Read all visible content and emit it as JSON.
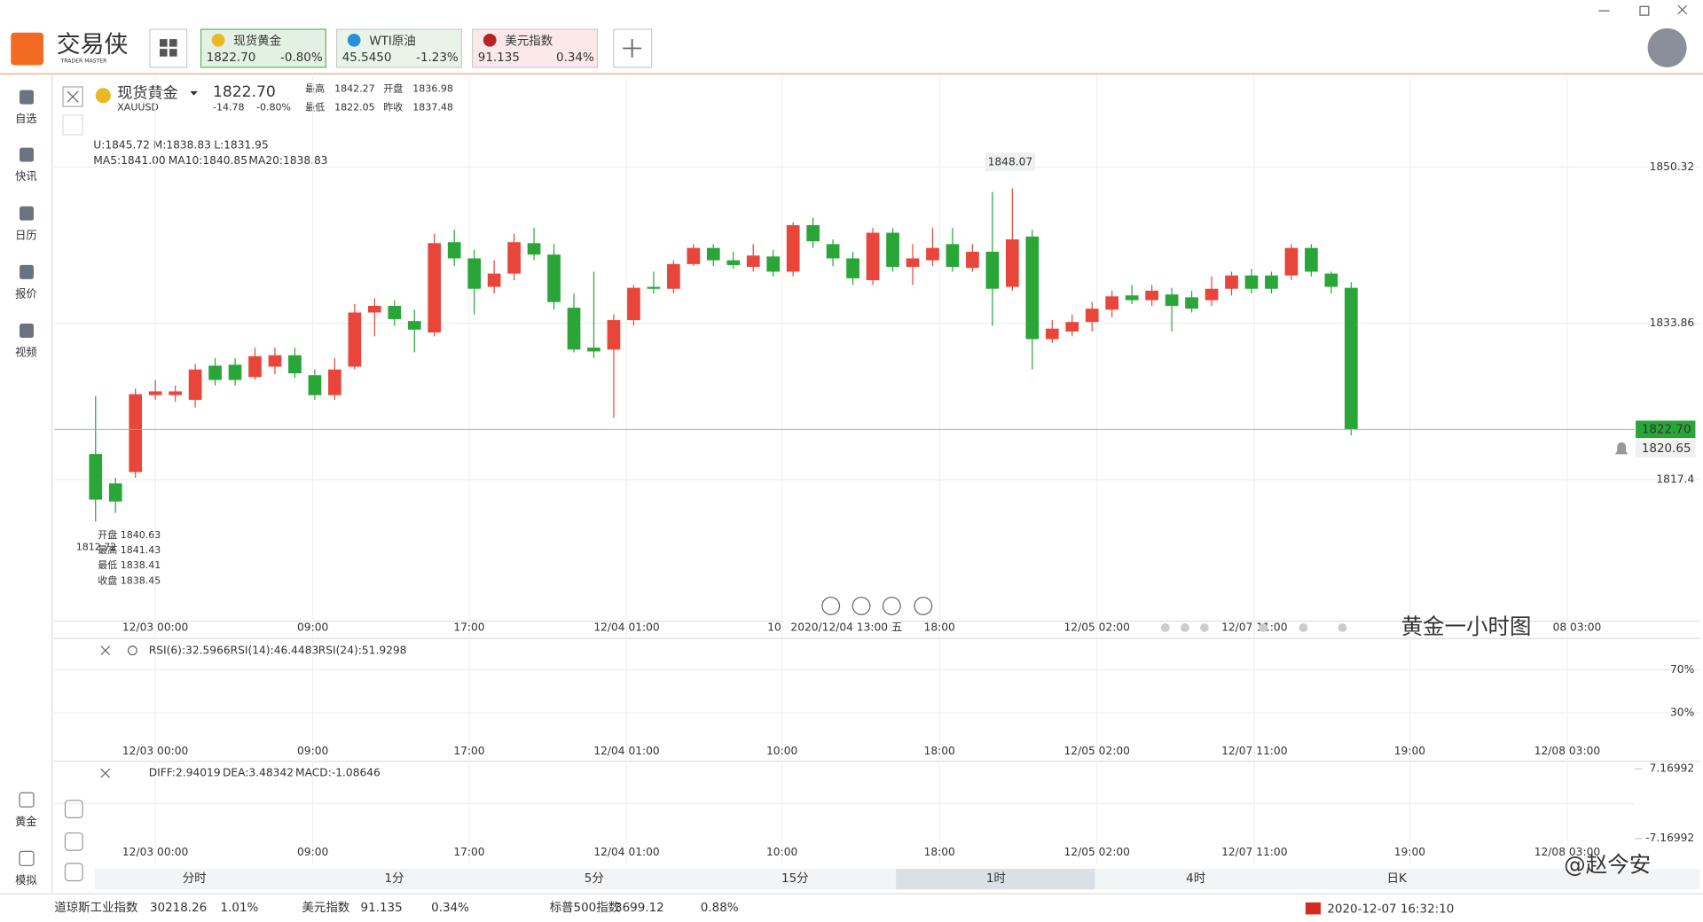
{
  "app": {
    "logo_name": "交易侠",
    "logo_sub": "TRADER MASTER"
  },
  "tabs": [
    {
      "name": "现货黄金",
      "price": "1822.70",
      "change": "-0.80%"
    },
    {
      "name": "WTI原油",
      "price": "45.5450",
      "change": "-1.23%"
    },
    {
      "name": "美元指数",
      "price": "91.135",
      "change": "0.34%"
    }
  ],
  "sidebar": [
    "自选",
    "快讯",
    "日历",
    "报价",
    "视频"
  ],
  "sidebar_bottom": [
    "黄金",
    "模拟"
  ],
  "instrument": {
    "name": "现货黄金",
    "code": "XAUUSD",
    "price": "1822.70",
    "change": "-14.78",
    "change_pct": "-0.80%",
    "stats": [
      {
        "label": "最高",
        "value": "1842.27"
      },
      {
        "label": "开盘",
        "value": "1836.98"
      },
      {
        "label": "最低",
        "value": "1822.05"
      },
      {
        "label": "昨收",
        "value": "1837.48"
      }
    ]
  },
  "boll": [
    "U:1845.72",
    "M:1838.83",
    "L:1831.95"
  ],
  "ma": [
    "MA5:1841.00",
    "MA10:1840.85",
    "MA20:1838.83"
  ],
  "hover": {
    "time": "2020/12/04 13:00 五",
    "low_marker": "1812.72",
    "lines": [
      "开盘 1840.63",
      "最高 1841.43",
      "最低 1838.41",
      "收盘 1838.45"
    ]
  },
  "annotation": "黄金一小时图",
  "chart_data": {
    "type": "candlestick",
    "ylim": [
      1802.5,
      1859.9
    ],
    "yticks": [
      1850.32,
      1833.86,
      1817.4
    ],
    "alert": 1820.65,
    "x_labels": [
      "12/03 00:00",
      "09:00",
      "17:00",
      "12/04 01:00",
      "10",
      "18:00",
      "12/05 02:00",
      "12/07 11:00",
      "08 03:00"
    ],
    "up_color": "#e8463b",
    "down_color": "#2aa639",
    "candles": [
      [
        1820.1,
        1826.2,
        1813.0,
        1815.3
      ],
      [
        1817.0,
        1817.6,
        1813.9,
        1815.1
      ],
      [
        1818.2,
        1827.0,
        1817.6,
        1826.4
      ],
      [
        1826.3,
        1827.9,
        1825.8,
        1826.7
      ],
      [
        1826.3,
        1827.3,
        1825.6,
        1826.7
      ],
      [
        1825.8,
        1829.6,
        1825.0,
        1829.0
      ],
      [
        1829.4,
        1830.2,
        1827.3,
        1827.9
      ],
      [
        1829.5,
        1830.2,
        1827.3,
        1827.9
      ],
      [
        1828.2,
        1831.3,
        1827.9,
        1830.4
      ],
      [
        1829.3,
        1831.3,
        1828.5,
        1830.5
      ],
      [
        1830.5,
        1831.3,
        1828.1,
        1828.6
      ],
      [
        1828.4,
        1829.0,
        1825.8,
        1826.3
      ],
      [
        1826.3,
        1830.2,
        1825.8,
        1829.0
      ],
      [
        1829.3,
        1835.9,
        1829.0,
        1835.0
      ],
      [
        1835.0,
        1836.5,
        1832.5,
        1835.7
      ],
      [
        1835.7,
        1836.3,
        1833.6,
        1834.3
      ],
      [
        1834.1,
        1835.3,
        1830.8,
        1833.2
      ],
      [
        1832.9,
        1843.3,
        1832.5,
        1842.3
      ],
      [
        1842.4,
        1843.7,
        1839.9,
        1840.7
      ],
      [
        1840.7,
        1841.6,
        1834.8,
        1837.5
      ],
      [
        1837.7,
        1840.5,
        1837.0,
        1839.1
      ],
      [
        1839.1,
        1843.3,
        1838.4,
        1842.4
      ],
      [
        1842.3,
        1843.9,
        1840.5,
        1841.1
      ],
      [
        1841.1,
        1842.2,
        1835.3,
        1836.1
      ],
      [
        1835.5,
        1837.0,
        1830.8,
        1831.1
      ],
      [
        1831.3,
        1839.3,
        1830.2,
        1830.9
      ],
      [
        1831.1,
        1834.8,
        1823.9,
        1834.2
      ],
      [
        1834.2,
        1837.9,
        1833.6,
        1837.6
      ],
      [
        1837.7,
        1839.3,
        1837.0,
        1837.5
      ],
      [
        1837.5,
        1840.5,
        1837.0,
        1840.1
      ],
      [
        1840.1,
        1842.2,
        1839.9,
        1841.8
      ],
      [
        1841.8,
        1842.2,
        1839.9,
        1840.5
      ],
      [
        1840.5,
        1841.4,
        1839.6,
        1840.0
      ],
      [
        1839.8,
        1842.2,
        1839.3,
        1841.0
      ],
      [
        1840.9,
        1841.6,
        1838.8,
        1839.3
      ],
      [
        1839.3,
        1844.5,
        1838.8,
        1844.2
      ],
      [
        1844.2,
        1845.0,
        1841.8,
        1842.5
      ],
      [
        1842.2,
        1842.7,
        1839.9,
        1840.7
      ],
      [
        1840.7,
        1841.4,
        1837.9,
        1838.6
      ],
      [
        1838.4,
        1843.9,
        1837.9,
        1843.4
      ],
      [
        1843.4,
        1843.9,
        1839.3,
        1839.8
      ],
      [
        1839.8,
        1842.2,
        1837.9,
        1840.7
      ],
      [
        1840.5,
        1843.9,
        1839.9,
        1841.8
      ],
      [
        1842.2,
        1843.9,
        1839.3,
        1839.8
      ],
      [
        1839.7,
        1842.2,
        1839.3,
        1841.4
      ],
      [
        1841.4,
        1847.7,
        1833.6,
        1837.5
      ],
      [
        1837.7,
        1848.07,
        1837.3,
        1842.7
      ],
      [
        1843.0,
        1843.7,
        1829.0,
        1832.2
      ],
      [
        1832.2,
        1834.2,
        1831.8,
        1833.3
      ],
      [
        1833.0,
        1834.8,
        1832.5,
        1834.0
      ],
      [
        1834.0,
        1836.1,
        1833.0,
        1835.4
      ],
      [
        1835.3,
        1837.3,
        1834.5,
        1836.7
      ],
      [
        1836.8,
        1837.9,
        1835.9,
        1836.3
      ],
      [
        1836.3,
        1837.9,
        1835.7,
        1837.3
      ],
      [
        1836.9,
        1837.6,
        1833.0,
        1835.7
      ],
      [
        1836.6,
        1837.3,
        1835.0,
        1835.4
      ],
      [
        1836.3,
        1838.8,
        1835.7,
        1837.5
      ],
      [
        1837.5,
        1839.3,
        1836.8,
        1838.9
      ],
      [
        1838.9,
        1839.6,
        1837.0,
        1837.5
      ],
      [
        1838.9,
        1839.3,
        1837.0,
        1837.5
      ],
      [
        1838.9,
        1842.2,
        1838.4,
        1841.8
      ],
      [
        1841.8,
        1842.2,
        1838.8,
        1839.3
      ],
      [
        1839.1,
        1839.3,
        1837.0,
        1837.7
      ],
      [
        1837.6,
        1838.2,
        1822.05,
        1822.7
      ]
    ]
  },
  "rsi": {
    "legend": [
      "RSI(6):32.5966",
      "RSI(14):46.4483",
      "RSI(24):51.9298"
    ],
    "ylim": [
      -14,
      97
    ],
    "yticks": [
      {
        "value": 70,
        "label": "70%"
      },
      {
        "value": 30,
        "label": "30%"
      }
    ],
    "x_labels": [
      "12/03 00:00",
      "09:00",
      "17:00",
      "12/04 01:00",
      "10:00",
      "18:00",
      "12/05 02:00",
      "12/07 11:00",
      "19:00",
      "12/08 03:00"
    ]
  },
  "macd": {
    "legend": [
      "DIFF:2.94019",
      "DEA:3.48342",
      "MACD:-1.08646"
    ],
    "ylim": [
      -12.3,
      8.5
    ],
    "yticks": [
      7.16992,
      -7.16992
    ]
  },
  "periods": [
    "分时",
    "1分",
    "5分",
    "15分",
    "1时",
    "4时",
    "日K"
  ],
  "ticker": [
    {
      "name": "道琼斯工业指数",
      "value": "30218.26",
      "change": "1.01%"
    },
    {
      "name": "美元指数",
      "value": "91.135",
      "change": "0.34%"
    },
    {
      "name": "标普500指数",
      "value": "3699.12",
      "change": "0.88%"
    }
  ],
  "datetime": "2020-12-07 16:32:10",
  "watermark": "@赵今安"
}
